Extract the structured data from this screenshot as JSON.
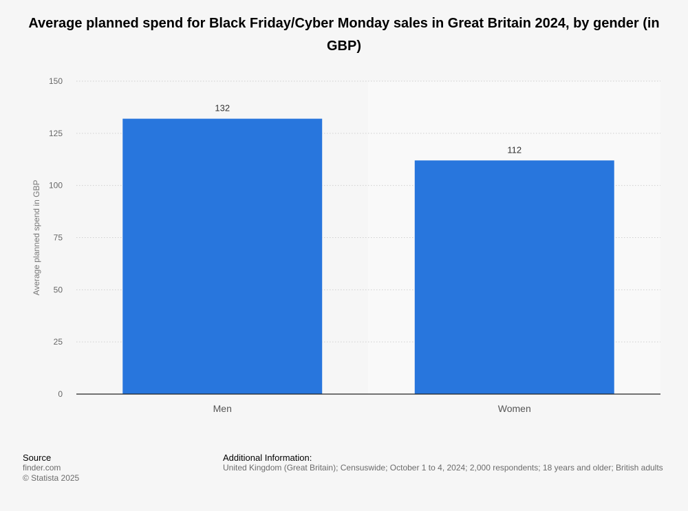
{
  "chart_data": {
    "type": "bar",
    "title": "Average planned spend for Black Friday/Cyber Monday sales in Great Britain 2024, by gender (in GBP)",
    "categories": [
      "Men",
      "Women"
    ],
    "values": [
      132,
      112
    ],
    "data_labels": [
      "132",
      "112"
    ],
    "ylabel": "Average planned spend in GBP",
    "xlabel": "",
    "ylim": [
      0,
      150
    ],
    "yticks": [
      0,
      25,
      50,
      75,
      100,
      125,
      150
    ],
    "grid": true,
    "bar_color": "#2876dd"
  },
  "footer": {
    "source_heading": "Source",
    "source_lines": [
      "finder.com",
      "© Statista 2025"
    ],
    "info_heading": "Additional Information:",
    "info_text": "United Kingdom (Great Britain); Censuswide; October 1 to 4, 2024; 2,000 respondents; 18 years and older; British adults"
  }
}
